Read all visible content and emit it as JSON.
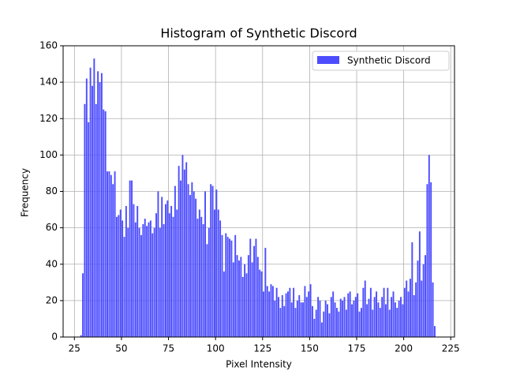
{
  "chart_data": {
    "type": "histogram",
    "title": "Histogram of Synthetic Discord",
    "x_label": "Pixel Intensity",
    "y_label": "Frequency",
    "bins": [
      28,
      29,
      30,
      31,
      32,
      33,
      34,
      35,
      36,
      37,
      38,
      39,
      40,
      41,
      42,
      43,
      44,
      45,
      46,
      47,
      48,
      49,
      50,
      51,
      52,
      53,
      54,
      55,
      56,
      57,
      58,
      59,
      60,
      61,
      62,
      63,
      64,
      65,
      66,
      67,
      68,
      69,
      70,
      71,
      72,
      73,
      74,
      75,
      76,
      77,
      78,
      79,
      80,
      81,
      82,
      83,
      84,
      85,
      86,
      87,
      88,
      89,
      90,
      91,
      92,
      93,
      94,
      95,
      96,
      97,
      98,
      99,
      100,
      101,
      102,
      103,
      104,
      105,
      106,
      107,
      108,
      109,
      110,
      111,
      112,
      113,
      114,
      115,
      116,
      117,
      118,
      119,
      120,
      121,
      122,
      123,
      124,
      125,
      126,
      127,
      128,
      129,
      130,
      131,
      132,
      133,
      134,
      135,
      136,
      137,
      138,
      139,
      140,
      141,
      142,
      143,
      144,
      145,
      146,
      147,
      148,
      149,
      150,
      151,
      152,
      153,
      154,
      155,
      156,
      157,
      158,
      159,
      160,
      161,
      162,
      163,
      164,
      165,
      166,
      167,
      168,
      169,
      170,
      171,
      172,
      173,
      174,
      175,
      176,
      177,
      178,
      179,
      180,
      181,
      182,
      183,
      184,
      185,
      186,
      187,
      188,
      189,
      190,
      191,
      192,
      193,
      194,
      195,
      196,
      197,
      198,
      199,
      200,
      201,
      202,
      203,
      204,
      205,
      206,
      207,
      208,
      209,
      210,
      211,
      212,
      213,
      214,
      215,
      216,
      217
    ],
    "series": [
      {
        "name": "Synthetic Discord",
        "color": "#4d4dff",
        "values": [
          1,
          35,
          128,
          142,
          118,
          148,
          138,
          153,
          128,
          146,
          140,
          145,
          125,
          124,
          91,
          91,
          89,
          84,
          91,
          66,
          67,
          70,
          64,
          55,
          72,
          60,
          86,
          86,
          73,
          63,
          72,
          60,
          56,
          62,
          65,
          61,
          63,
          64,
          57,
          60,
          68,
          80,
          60,
          77,
          62,
          73,
          75,
          68,
          72,
          66,
          83,
          70,
          94,
          86,
          100,
          92,
          96,
          84,
          78,
          85,
          80,
          76,
          65,
          70,
          66,
          62,
          80,
          51,
          60,
          84,
          83,
          70,
          81,
          70,
          64,
          56,
          36,
          57,
          55,
          54,
          53,
          41,
          56,
          45,
          42,
          44,
          33,
          40,
          35,
          45,
          54,
          41,
          50,
          54,
          44,
          37,
          36,
          25,
          49,
          28,
          25,
          29,
          28,
          20,
          27,
          22,
          16,
          23,
          17,
          24,
          25,
          27,
          19,
          27,
          16,
          20,
          23,
          19,
          19,
          28,
          22,
          25,
          29,
          17,
          10,
          15,
          22,
          20,
          8,
          14,
          20,
          18,
          13,
          22,
          25,
          19,
          16,
          14,
          21,
          20,
          22,
          15,
          24,
          25,
          18,
          20,
          22,
          24,
          14,
          16,
          27,
          31,
          18,
          21,
          27,
          15,
          22,
          25,
          19,
          16,
          22,
          27,
          18,
          27,
          15,
          22,
          25,
          19,
          16,
          20,
          22,
          18,
          27,
          31,
          25,
          32,
          52,
          23,
          30,
          42,
          58,
          31,
          40,
          45,
          84,
          100,
          85,
          30,
          6
        ]
      }
    ],
    "xlim": [
      19,
      227
    ],
    "ylim": [
      0,
      160
    ],
    "xticks": [
      25,
      50,
      75,
      100,
      125,
      150,
      175,
      200,
      225
    ],
    "yticks": [
      0,
      20,
      40,
      60,
      80,
      100,
      120,
      140,
      160
    ],
    "grid": true,
    "legend": "upper right"
  }
}
